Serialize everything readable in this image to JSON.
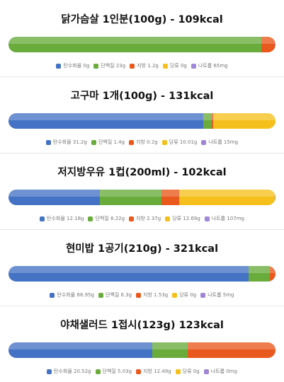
{
  "colors": {
    "carbs": "#4472c4",
    "protein": "#6aac3c",
    "fat": "#e9581c",
    "sugar": "#f5c01c",
    "sodium": "#9f86d6"
  },
  "chart_data": [
    {
      "type": "bar",
      "title": "닭가슴살 1인분(100g) - 109kcal",
      "series": [
        {
          "name": "탄수화물",
          "value": 0,
          "legend": "탄수화물 0g"
        },
        {
          "name": "단백질",
          "value": 23,
          "legend": "단백질 23g"
        },
        {
          "name": "지방",
          "value": 1.2,
          "legend": "지방 1.2g"
        },
        {
          "name": "당류",
          "value": 0,
          "legend": "당류 0g"
        },
        {
          "name": "나트륨",
          "value": 0.065,
          "legend": "나트륨 65mg"
        }
      ]
    },
    {
      "type": "bar",
      "title": "고구마 1개(100g) - 131kcal",
      "series": [
        {
          "name": "탄수화물",
          "value": 31.2,
          "legend": "탄수화물 31.2g"
        },
        {
          "name": "단백질",
          "value": 1.4,
          "legend": "단백질 1.4g"
        },
        {
          "name": "지방",
          "value": 0.2,
          "legend": "지방 0.2g"
        },
        {
          "name": "당류",
          "value": 10.01,
          "legend": "당류 10.01g"
        },
        {
          "name": "나트륨",
          "value": 0.015,
          "legend": "나트륨 15mg"
        }
      ]
    },
    {
      "type": "bar",
      "title": "저지방우유 1컵(200ml) - 102kcal",
      "series": [
        {
          "name": "탄수화물",
          "value": 12.18,
          "legend": "탄수화물 12.18g"
        },
        {
          "name": "단백질",
          "value": 8.22,
          "legend": "단백질 8.22g"
        },
        {
          "name": "지방",
          "value": 2.37,
          "legend": "지방 2.37g"
        },
        {
          "name": "당류",
          "value": 12.69,
          "legend": "당류 12.69g"
        },
        {
          "name": "나트륨",
          "value": 0.107,
          "legend": "나트륨 107mg"
        }
      ]
    },
    {
      "type": "bar",
      "title": "현미밥 1공기(210g) - 321kcal",
      "series": [
        {
          "name": "탄수화물",
          "value": 68.95,
          "legend": "탄수화물 68.95g"
        },
        {
          "name": "단백질",
          "value": 6.3,
          "legend": "단백질 6.3g"
        },
        {
          "name": "지방",
          "value": 1.53,
          "legend": "지방 1.53g"
        },
        {
          "name": "당류",
          "value": 0,
          "legend": "당류 0g"
        },
        {
          "name": "나트륨",
          "value": 0.005,
          "legend": "나트륨 5mg"
        }
      ]
    },
    {
      "type": "bar",
      "title": "야채샐러드 1접시(123g) 123kcal",
      "series": [
        {
          "name": "탄수화물",
          "value": 20.52,
          "legend": "탄수화물 20.52g"
        },
        {
          "name": "단백질",
          "value": 5.03,
          "legend": "단백질 5.03g"
        },
        {
          "name": "지방",
          "value": 12.49,
          "legend": "지방 12.49g"
        },
        {
          "name": "당류",
          "value": 0,
          "legend": "당류 0g"
        },
        {
          "name": "나트륨",
          "value": 0,
          "legend": "나트륨 0mg"
        }
      ]
    }
  ]
}
